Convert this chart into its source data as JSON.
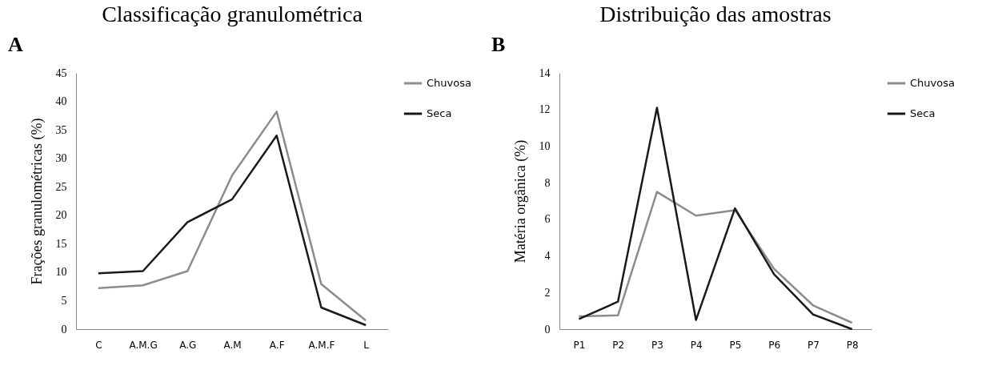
{
  "chart_data": [
    {
      "type": "line",
      "title": "Classificação granulométrica",
      "ylabel": "Frações granulométricas  (%)",
      "annotations": [
        "A"
      ],
      "categories": [
        "C",
        "A.M.G",
        "A.G",
        "A.M",
        "A.F",
        "A.M.F",
        "L"
      ],
      "series": [
        {
          "name": "Chuvosa",
          "color": "#8c8c8c",
          "values": [
            7.2,
            7.7,
            10.2,
            27,
            38.2,
            7.9,
            1.5
          ]
        },
        {
          "name": "Seca",
          "color": "#1a1a1a",
          "values": [
            9.8,
            10.2,
            18.8,
            22.8,
            34,
            3.8,
            0.7
          ]
        }
      ],
      "ylim": [
        0,
        45
      ],
      "yticks": [
        0,
        5,
        10,
        15,
        20,
        25,
        30,
        35,
        40,
        45
      ],
      "grid": false,
      "legend": "right",
      "marker": "none",
      "line_style": "solid"
    },
    {
      "type": "line",
      "title": "Distribuição das amostras",
      "ylabel": "Matéria  orgânica  (%)",
      "annotations": [
        "B"
      ],
      "categories": [
        "P1",
        "P2",
        "P3",
        "P4",
        "P5",
        "P6",
        "P7",
        "P8"
      ],
      "series": [
        {
          "name": "Chuvosa",
          "color": "#8c8c8c",
          "values": [
            0.7,
            0.75,
            7.5,
            6.2,
            6.5,
            3.3,
            1.3,
            0.35
          ]
        },
        {
          "name": "Seca",
          "color": "#1a1a1a",
          "values": [
            0.55,
            1.5,
            12.1,
            0.5,
            6.6,
            3.0,
            0.8,
            0
          ]
        }
      ],
      "ylim": [
        0,
        14
      ],
      "yticks": [
        0,
        2,
        4,
        6,
        8,
        10,
        12,
        14
      ],
      "grid": false,
      "legend": "right",
      "marker": "none",
      "line_style": "solid"
    }
  ]
}
